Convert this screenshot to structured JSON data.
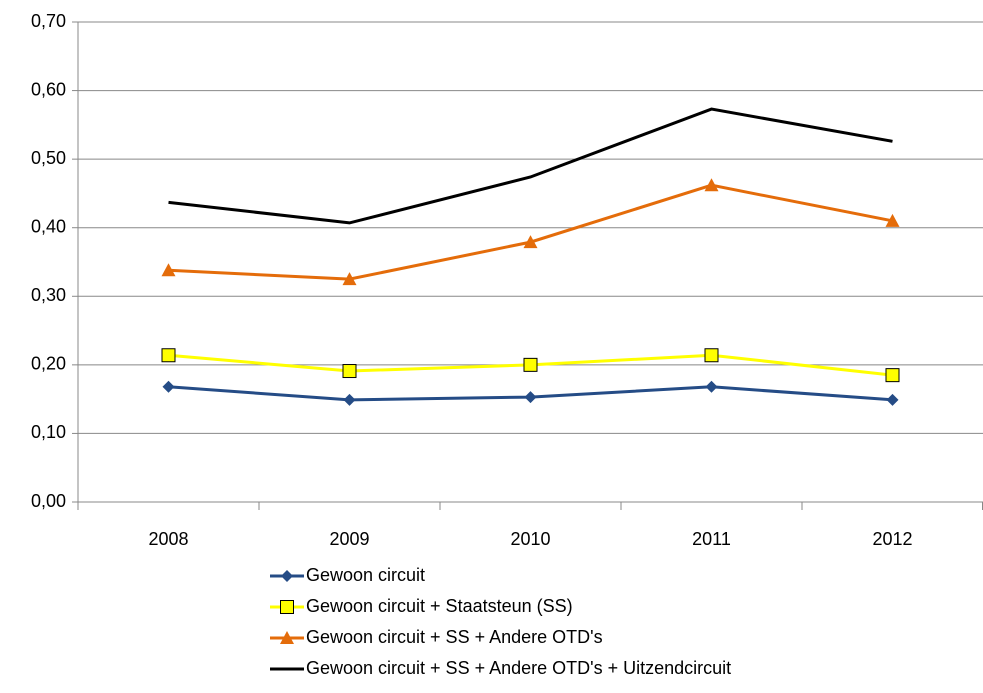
{
  "chart_data": {
    "type": "line",
    "categories": [
      "2008",
      "2009",
      "2010",
      "2011",
      "2012"
    ],
    "series": [
      {
        "name": "Gewoon circuit",
        "color": "#254c86",
        "marker": "diamond",
        "values": [
          0.168,
          0.149,
          0.153,
          0.168,
          0.149
        ]
      },
      {
        "name": "Gewoon circuit + Staatsteun (SS)",
        "color": "#ffff00",
        "marker": "square",
        "values": [
          0.214,
          0.191,
          0.2,
          0.214,
          0.185
        ]
      },
      {
        "name": "Gewoon circuit + SS + Andere OTD's",
        "color": "#e46c0a",
        "marker": "triangle",
        "values": [
          0.338,
          0.325,
          0.379,
          0.462,
          0.41
        ]
      },
      {
        "name": "Gewoon circuit + SS + Andere OTD's + Uitzendcircuit",
        "color": "#000000",
        "marker": "none",
        "values": [
          0.437,
          0.407,
          0.474,
          0.573,
          0.526
        ]
      }
    ],
    "ylim": [
      0,
      0.7
    ],
    "yticks": [
      {
        "value": 0,
        "label": "0,00"
      },
      {
        "value": 0.1,
        "label": "0,10"
      },
      {
        "value": 0.2,
        "label": "0,20"
      },
      {
        "value": 0.3,
        "label": "0,30"
      },
      {
        "value": 0.4,
        "label": "0,40"
      },
      {
        "value": 0.5,
        "label": "0,50"
      },
      {
        "value": 0.6,
        "label": "0,60"
      },
      {
        "value": 0.7,
        "label": "0,70"
      }
    ],
    "grid": true,
    "legend": "bottom"
  }
}
